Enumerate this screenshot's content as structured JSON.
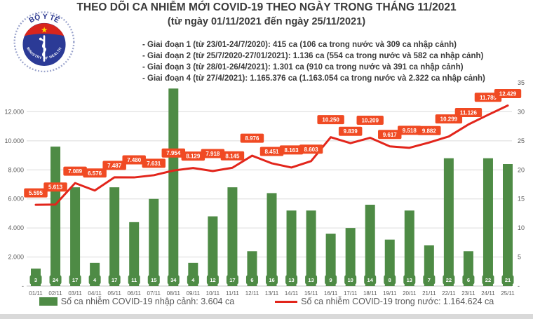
{
  "logo": {
    "top_text": "BỘ Y TẾ",
    "bottom_text": "MINISTRY OF HEALTH"
  },
  "header": {
    "title": "THEO DÕI CA NHIỄM MỚI COVID-19 THEO NGÀY TRONG THÁNG 11/2021",
    "subtitle": "(từ ngày 01/11/2021 đến ngày 25/11/2021)",
    "phases": [
      "- Giai đoạn 1 (từ 23/01-24/7/2020): 415 ca (106 ca trong nước và 309 ca nhập cảnh)",
      "- Giai đoạn 2 (từ 25/7/2020-27/01/2021): 1.136 ca (554 ca trong nước và 582 ca nhập cảnh)",
      "- Giai đoạn 3 (từ 28/01-26/4/2021): 1.301 ca (910 ca trong nước và 391 ca nhập cảnh)",
      "- Giai đoạn 4 (từ 27/4/2021): 1.165.376 ca (1.163.054 ca trong nước và 2.322 ca nhập cảnh)"
    ]
  },
  "legend": {
    "imported": {
      "label": "Số ca nhiễm COVID-19 nhập cảnh: 3.604 ca",
      "color": "#4e8b45"
    },
    "domestic": {
      "label": "Số ca nhiễm COVID-19 trong nước: 1.164.624 ca",
      "color": "#e2251b"
    }
  },
  "chart_data": {
    "type": "bar+line",
    "categories": [
      "01/11",
      "02/11",
      "03/11",
      "04/11",
      "05/11",
      "06/11",
      "07/11",
      "08/11",
      "09/11",
      "10/11",
      "11/11",
      "12/11",
      "13/11",
      "14/11",
      "15/11",
      "16/11",
      "17/11",
      "18/11",
      "19/11",
      "20/11",
      "21/11",
      "22/11",
      "23/11",
      "24/11",
      "25/11"
    ],
    "series": [
      {
        "name": "Số ca nhiễm COVID-19 nhập cảnh",
        "type": "bar",
        "axis": "right",
        "color": "#4e8b45",
        "values": [
          3,
          24,
          17,
          4,
          17,
          11,
          15,
          34,
          4,
          12,
          17,
          6,
          16,
          13,
          13,
          9,
          10,
          14,
          8,
          13,
          7,
          22,
          6,
          22,
          21
        ]
      },
      {
        "name": "Số ca nhiễm COVID-19 trong nước",
        "type": "line",
        "axis": "left",
        "color": "#e2251b",
        "label_bg": "#f04a23",
        "values": [
          5595,
          5613,
          7089,
          6576,
          7487,
          7480,
          7631,
          7954,
          8129,
          7918,
          8145,
          8976,
          8451,
          8163,
          8603,
          10250,
          9839,
          10209,
          9617,
          9518,
          9882,
          10299,
          11126,
          11789,
          12429
        ]
      }
    ],
    "left_axis": {
      "max": 14000,
      "tick_step": 2000,
      "tick_labels": [
        "2.000",
        "4.000",
        "6.000",
        "8.000",
        "10.000",
        "12.000"
      ],
      "zero_label": "-"
    },
    "right_axis": {
      "max": 35,
      "tick_step": 5,
      "tick_labels": [
        "5",
        "10",
        "15",
        "20",
        "25",
        "30",
        "35"
      ],
      "zero_label": "-"
    },
    "grid": true,
    "legend_position": "bottom",
    "text_color": "#595959",
    "grid_color": "#dcdcdc",
    "axis_color": "#c6c6c6"
  }
}
